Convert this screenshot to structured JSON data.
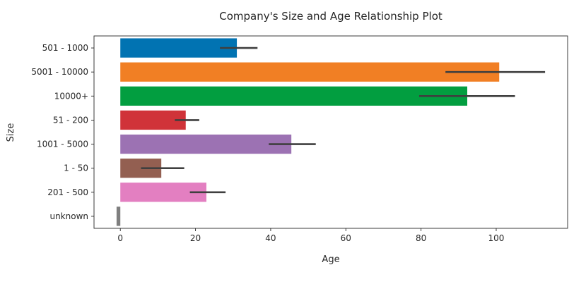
{
  "chart_data": {
    "type": "bar",
    "orientation": "horizontal",
    "title": "Company's Size and Age Relationship Plot",
    "xlabel": "Age",
    "ylabel": "Size",
    "xlim": [
      -7,
      119
    ],
    "xticks": [
      0,
      20,
      40,
      60,
      80,
      100
    ],
    "grid": false,
    "legend": "none",
    "categories": [
      "501 - 1000",
      "5001 - 10000",
      "10000+",
      "51 - 200",
      "1001 - 5000",
      "1 - 50",
      "201 - 500",
      "unknown"
    ],
    "values": [
      31,
      100.8,
      92.3,
      17.4,
      45.5,
      10.9,
      22.9,
      -1
    ],
    "ci_low": [
      26.5,
      86.5,
      79.5,
      14.5,
      39.5,
      5.5,
      18.5,
      -1
    ],
    "ci_high": [
      36.5,
      113,
      105,
      21,
      52,
      17,
      28,
      -1
    ],
    "colors": [
      "#0173b2",
      "#f17f24",
      "#029e40",
      "#d03339",
      "#9c72b3",
      "#935f51",
      "#e37fc1",
      "#7f7f7f"
    ]
  }
}
